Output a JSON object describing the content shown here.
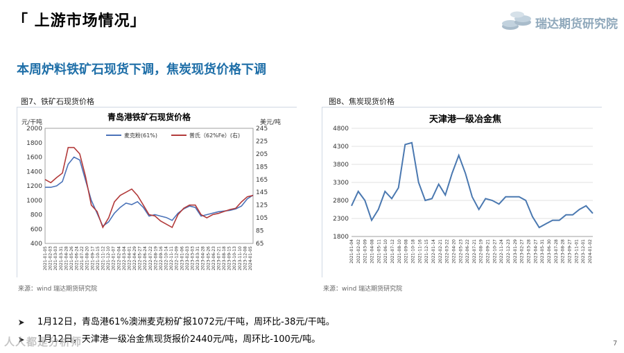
{
  "header": {
    "title": "「 上游市场情况」",
    "logo_text": "瑞达期货研究院"
  },
  "headline": "本周炉料铁矿石现货下调，焦炭现货价格下调",
  "figure7": {
    "caption": "图7、铁矿石现货价格",
    "source": "来源：wind   瑞达期货研究院"
  },
  "figure8": {
    "caption": "图8、焦炭现货价格",
    "source": "来源：wind   瑞达期货研究院"
  },
  "bullets": [
    "1月12日，青岛港61%澳洲麦克粉矿报1072元/干吨，周环比-38元/干吨。",
    "1月12日，天津港一级冶金焦现货报价2440元/吨，周环比-100元/吨。"
  ],
  "watermark": "人人都是分析师",
  "page_number": "7",
  "colors": {
    "series_blue": "#4a72b8",
    "series_red": "#b23a3a",
    "headline": "#1f6fa8",
    "coke_line": "#4a78b0"
  },
  "chart_data": [
    {
      "type": "line",
      "title": "青岛港铁矿石现货价格",
      "ylabel_left": "元/干吨",
      "ylabel_right": "美元/吨",
      "ylim_left": [
        400,
        2000
      ],
      "ylim_right": [
        65,
        245
      ],
      "yticks_left": [
        400,
        600,
        800,
        1000,
        1200,
        1400,
        1600,
        1800,
        2000
      ],
      "yticks_right": [
        65,
        85,
        105,
        125,
        145,
        165,
        185,
        205,
        225,
        245
      ],
      "legend_position": "top-center",
      "x_tick_labels": [
        "2021-01-05",
        "2021-02-03",
        "2021-03-03",
        "2021-03-31",
        "2021-04-28",
        "2021-05-26",
        "2021-06-24",
        "2021-07-22",
        "2021-08-20",
        "2021-09-17",
        "2021-10-15",
        "2021-11-12",
        "2021-12-10",
        "2022-01-07",
        "2022-02-04",
        "2022-03-04",
        "2022-04-01",
        "2022-04-29",
        "2022-05-27",
        "2022-06-24",
        "2022-07-22",
        "2022-08-19",
        "2022-09-16",
        "2022-10-14",
        "2022-11-11",
        "2022-12-09",
        "2023-01-06",
        "2023-02-03",
        "2023-03-03",
        "2023-03-31",
        "2023-04-28",
        "2023-05-26",
        "2023-06-23",
        "2023-07-21",
        "2023-08-18",
        "2023-09-15",
        "2023-10-13",
        "2023-11-10",
        "2023-12-08",
        "2024-01-05"
      ],
      "x": [
        "2021-01",
        "2021-02",
        "2021-03",
        "2021-04",
        "2021-05",
        "2021-06",
        "2021-07",
        "2021-08",
        "2021-09",
        "2021-10",
        "2021-11",
        "2021-12",
        "2022-01",
        "2022-02",
        "2022-03",
        "2022-04",
        "2022-05",
        "2022-06",
        "2022-07",
        "2022-08",
        "2022-09",
        "2022-10",
        "2022-11",
        "2022-12",
        "2023-01",
        "2023-02",
        "2023-03",
        "2023-04",
        "2023-05",
        "2023-06",
        "2023-07",
        "2023-08",
        "2023-09",
        "2023-10",
        "2023-11",
        "2023-12",
        "2024-01"
      ],
      "series": [
        {
          "name": "麦克粉(61%)",
          "axis": "left",
          "values": [
            1180,
            1180,
            1200,
            1260,
            1500,
            1600,
            1560,
            1280,
            1000,
            820,
            640,
            700,
            820,
            900,
            960,
            940,
            980,
            900,
            780,
            800,
            780,
            760,
            720,
            820,
            880,
            920,
            900,
            780,
            800,
            820,
            840,
            850,
            860,
            880,
            920,
            1020,
            1072
          ]
        },
        {
          "name": "普氏（62%Fe）(右)",
          "axis": "right",
          "values": [
            165,
            160,
            168,
            175,
            215,
            215,
            205,
            170,
            125,
            115,
            90,
            105,
            130,
            140,
            145,
            150,
            140,
            125,
            110,
            108,
            100,
            95,
            90,
            110,
            120,
            125,
            125,
            110,
            105,
            110,
            112,
            115,
            118,
            120,
            130,
            138,
            140
          ]
        }
      ]
    },
    {
      "type": "line",
      "title": "天津港一级冶金焦",
      "ylim": [
        1800,
        4800
      ],
      "yticks": [
        1800,
        2300,
        2800,
        3300,
        3800,
        4300,
        4800
      ],
      "x_tick_labels": [
        "2021-01-04",
        "2021-02-02",
        "2021-03-09",
        "2021-04-08",
        "2021-05-11",
        "2021-06-10",
        "2021-07-12",
        "2021-08-10",
        "2021-09-08",
        "2021-10-18",
        "2021-11-16",
        "2021-12-15",
        "2022-01-14",
        "2022-02-21",
        "2022-03-22",
        "2022-04-20",
        "2022-05-23",
        "2022-06-22",
        "2022-07-21",
        "2022-08-19",
        "2022-09-21",
        "2022-10-27",
        "2022-11-24",
        "2022-12-23",
        "2023-01-29",
        "2023-02-27",
        "2023-03-28",
        "2023-04-27",
        "2023-05-31",
        "2023-06-30",
        "2023-07-28",
        "2023-08-28",
        "2023-09-27",
        "2023-11-01",
        "2023-12-01",
        "2024-01-02"
      ],
      "x": [
        "2021-01",
        "2021-02",
        "2021-03",
        "2021-04",
        "2021-05",
        "2021-06",
        "2021-07",
        "2021-08",
        "2021-09",
        "2021-10",
        "2021-11",
        "2021-12",
        "2022-01",
        "2022-02",
        "2022-03",
        "2022-04",
        "2022-05",
        "2022-06",
        "2022-07",
        "2022-08",
        "2022-09",
        "2022-10",
        "2022-11",
        "2022-12",
        "2023-01",
        "2023-02",
        "2023-03",
        "2023-04",
        "2023-05",
        "2023-06",
        "2023-07",
        "2023-08",
        "2023-09",
        "2023-10",
        "2023-11",
        "2023-12",
        "2024-01"
      ],
      "series": [
        {
          "name": "天津港一级冶金焦",
          "values": [
            2650,
            3050,
            2800,
            2250,
            2550,
            3050,
            2850,
            3150,
            4350,
            4400,
            3300,
            2800,
            2850,
            3250,
            2950,
            3550,
            4050,
            3550,
            2900,
            2550,
            2850,
            2800,
            2700,
            2900,
            2900,
            2900,
            2800,
            2350,
            2050,
            2150,
            2250,
            2250,
            2400,
            2400,
            2550,
            2650,
            2440
          ]
        }
      ]
    }
  ]
}
